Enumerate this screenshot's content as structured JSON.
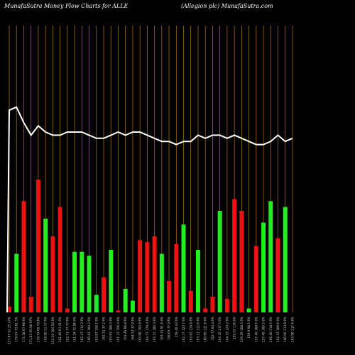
{
  "header": {
    "left_title": "MunafaSutra  Money Flow  Charts for ALLE",
    "right_title": "(Allegion  plc) MunafaSutra.com"
  },
  "colors": {
    "background": "#000000",
    "grid": "#b8760b",
    "up": "#22ee22",
    "down": "#ee1111",
    "line": "#ffffff"
  },
  "chart_data": {
    "type": "bar",
    "title": "MunafaSutra  Money Flow  Charts for ALLE",
    "subtitle": "(Allegion  plc) MunafaSutra.com",
    "ylim": [
      0,
      100
    ],
    "grid": "vertical",
    "categories": [
      "127.97 62.25 27%",
      "179.67 75.01 5%",
      "171.38 67.98 6%",
      "171.45 95.68 67%",
      "170.74 69.79 6%",
      "159.60 11.77 6%",
      "163.26 103.50 6%",
      "161.89 91.41 6%",
      "162.71 77.77 6%",
      "161.34 72.96 6%",
      "162.27 112.3 6%",
      "160.83 104.2 6%",
      "163.07 158.1 6%",
      "162.31 37.2 6%",
      "163.63 108.3 6%",
      "167.23 156.4 6%",
      "163.49 98.8 6%",
      "164.32 37.9 6%",
      "165.68 104.8 6%",
      "163.57 179.4 6%",
      "163.57 180.3 6%",
      "163.31 91.6 6%",
      "158.03 77.9 6%",
      "159.40 44 6%",
      "162.77 122.7 6%",
      "163.62 119.8 6%",
      "163.11 112.6 6%",
      "160.69 121.6 6%",
      "162.77 84.4 6%",
      "164.35 117.5 6%",
      "164.33 124.2 6%",
      "159.33 116 6%",
      "159.59 108.5 6%",
      "159.9 98.5 6%",
      "157.49 100.5 6%",
      "157.49 100.5 6%",
      "160.46 118.5 6%",
      "162.33 109.6 6%",
      "160.06 113.8 6%",
      "163.90 117.6 6%"
    ],
    "series": [
      {
        "values": [
          3,
          30,
          57,
          8,
          68,
          48,
          39,
          54,
          2,
          31,
          31,
          29,
          9,
          18,
          32,
          1,
          12,
          6,
          37,
          36,
          39,
          30,
          16,
          35,
          45,
          11,
          32,
          2,
          8,
          52,
          7,
          58,
          52,
          2,
          34,
          46,
          57,
          38,
          54,
          0
        ],
        "directions": [
          "down",
          "up",
          "down",
          "down",
          "down",
          "up",
          "down",
          "down",
          "down",
          "up",
          "up",
          "up",
          "up",
          "down",
          "up",
          "down",
          "up",
          "up",
          "down",
          "down",
          "down",
          "up",
          "down",
          "down",
          "up",
          "down",
          "up",
          "down",
          "down",
          "up",
          "down",
          "down",
          "down",
          "up",
          "down",
          "up",
          "up",
          "down",
          "up",
          "up"
        ]
      },
      {
        "values": [
          92,
          93,
          88,
          84,
          87,
          85,
          84,
          84,
          85,
          85,
          85,
          84,
          83,
          83,
          84,
          85,
          84,
          85,
          85,
          84,
          83,
          82,
          82,
          81,
          82,
          82,
          84,
          83,
          84,
          84,
          83,
          84,
          83,
          82,
          81,
          81,
          82,
          84,
          82,
          83
        ]
      }
    ]
  }
}
